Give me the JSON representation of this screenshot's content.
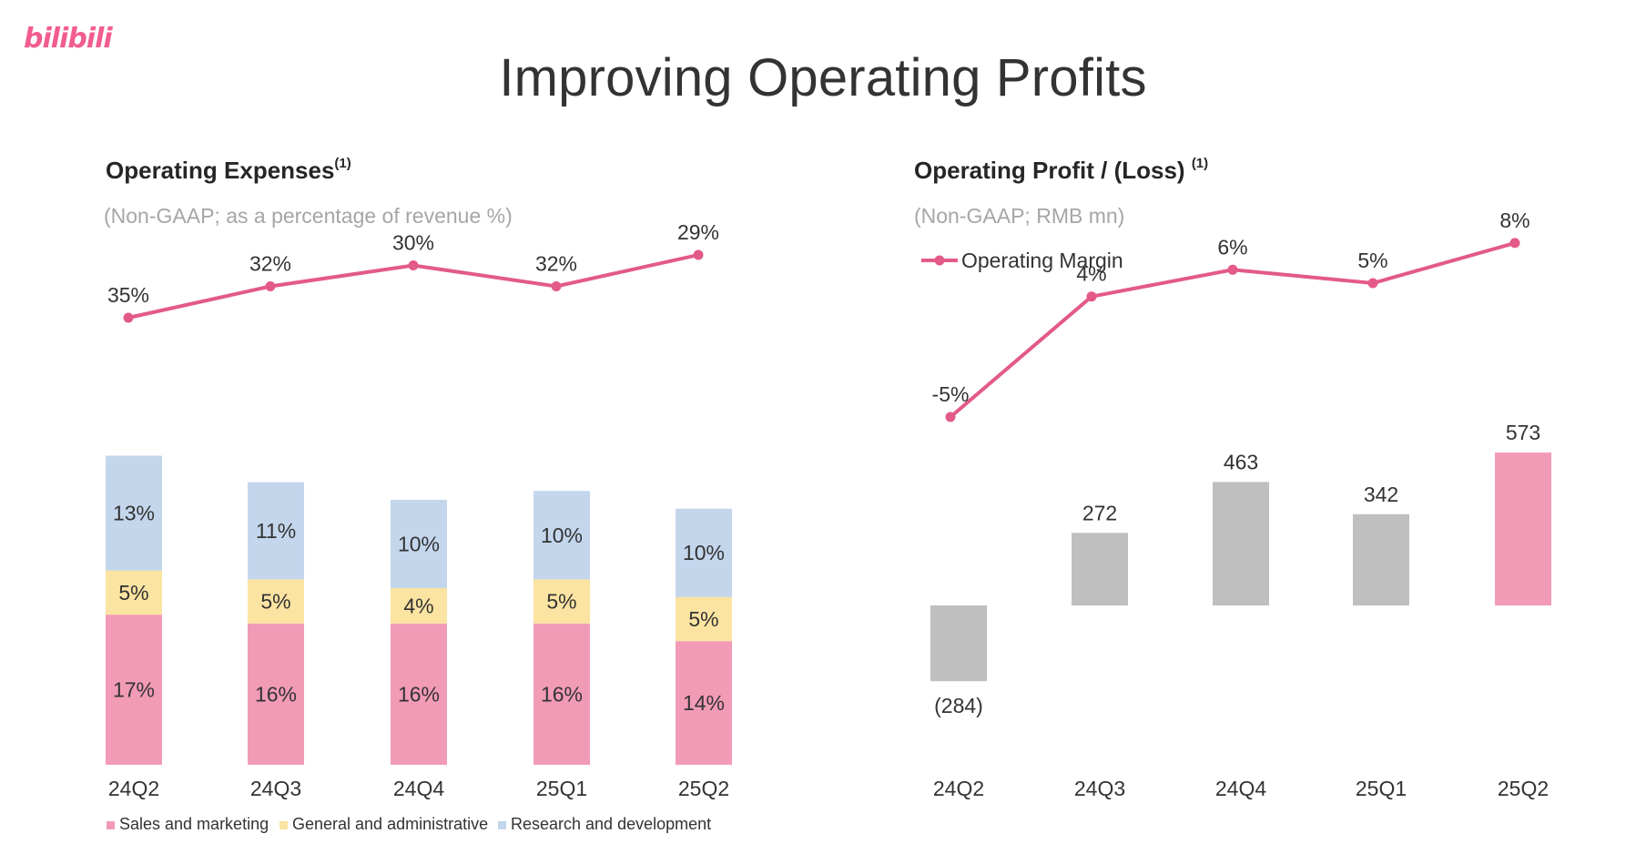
{
  "logo": {
    "text": "bilibili",
    "color": "#f25d8e"
  },
  "title": "Improving Operating Profits",
  "colors": {
    "line": "#e35a88",
    "sales": "#f29bb6",
    "ga": "#fbe3a1",
    "rd": "#c3d6ec",
    "loss_bar": "#bfbfbf",
    "profit_bar": "#f29bb6"
  },
  "left": {
    "title": "Operating Expenses",
    "title_sup": "(1)",
    "subtitle": "(Non-GAAP; as a percentage of revenue %)",
    "legend": [
      "Sales and marketing",
      "General and administrative",
      "Research and development"
    ]
  },
  "right": {
    "title": "Operating Profit / (Loss)",
    "title_sup": "(1)",
    "subtitle": "(Non-GAAP; RMB mn)",
    "legend": [
      "Operating Margin"
    ]
  },
  "chart_data": [
    {
      "type": "bar",
      "stacked": true,
      "title": "Operating Expenses",
      "subtitle": "(Non-GAAP; as a percentage of revenue %)",
      "categories": [
        "24Q2",
        "24Q3",
        "24Q4",
        "25Q1",
        "25Q2"
      ],
      "series": [
        {
          "name": "Sales and marketing",
          "values": [
            17,
            16,
            16,
            16,
            14
          ],
          "labels": [
            "17%",
            "16%",
            "16%",
            "16%",
            "14%"
          ]
        },
        {
          "name": "General and administrative",
          "values": [
            5,
            5,
            4,
            5,
            5
          ],
          "labels": [
            "5%",
            "5%",
            "4%",
            "5%",
            "5%"
          ]
        },
        {
          "name": "Research and development",
          "values": [
            13,
            11,
            10,
            10,
            10
          ],
          "labels": [
            "13%",
            "11%",
            "10%",
            "10%",
            "10%"
          ]
        }
      ],
      "line": {
        "values": [
          35,
          32,
          30,
          32,
          29
        ],
        "labels": [
          "35%",
          "32%",
          "30%",
          "32%",
          "29%"
        ]
      },
      "legend_position": "bottom-left"
    },
    {
      "type": "bar",
      "title": "Operating Profit / (Loss)",
      "subtitle": "(Non-GAAP; RMB mn)",
      "categories": [
        "24Q2",
        "24Q3",
        "24Q4",
        "25Q1",
        "25Q2"
      ],
      "series": [
        {
          "name": "",
          "values": [
            -284,
            272,
            463,
            342,
            573
          ],
          "labels": [
            "(284)",
            "272",
            "463",
            "342",
            "573"
          ]
        }
      ],
      "line": {
        "name": "Operating Margin",
        "values": [
          -5,
          4,
          6,
          5,
          8
        ],
        "labels": [
          "-5%",
          "4%",
          "6%",
          "5%",
          "8%"
        ]
      },
      "legend_position": "top-left"
    }
  ]
}
